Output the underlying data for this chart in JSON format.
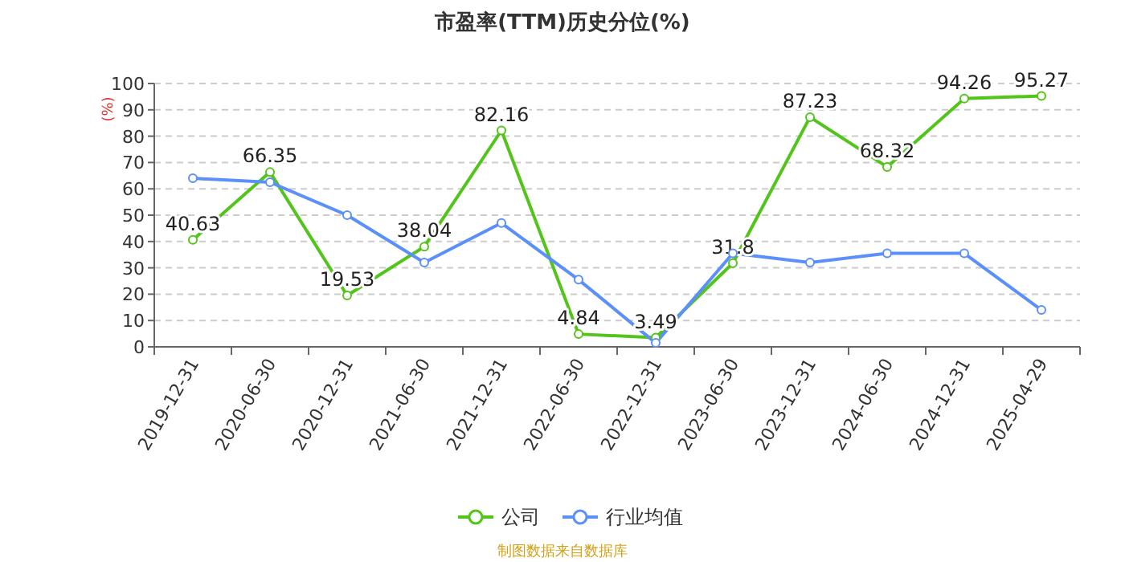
{
  "chart_data": {
    "type": "line",
    "title": "市盈率(TTM)历史分位(%)",
    "ylabel": "(%)",
    "categories": [
      "2019-12-31",
      "2020-06-30",
      "2020-12-31",
      "2021-06-30",
      "2021-12-31",
      "2022-06-30",
      "2022-12-31",
      "2023-06-30",
      "2023-12-31",
      "2024-06-30",
      "2024-12-31",
      "2025-04-29"
    ],
    "series": [
      {
        "name": "公司",
        "color": "#52c41a",
        "values": [
          40.63,
          66.35,
          19.53,
          38.04,
          82.16,
          4.84,
          3.49,
          31.8,
          87.23,
          68.32,
          94.26,
          95.27
        ],
        "value_labels": [
          "40.63",
          "66.35",
          "19.53",
          "38.04",
          "82.16",
          "4.84",
          "3.49",
          "31.8",
          "87.23",
          "68.32",
          "94.26",
          "95.27"
        ]
      },
      {
        "name": "行业均值",
        "color": "#5b8ff9",
        "values": [
          64,
          62.5,
          50,
          32,
          47,
          25.5,
          1.5,
          35.5,
          32,
          35.5,
          35.5,
          14
        ]
      }
    ],
    "ylim": [
      0,
      100
    ],
    "yticks": [
      0,
      10,
      20,
      30,
      40,
      50,
      60,
      70,
      80,
      90,
      100
    ],
    "grid": "y",
    "legend": "bottom",
    "marker": "circle",
    "line_style": "solid",
    "annotations": [
      "制图数据来自数据库"
    ]
  }
}
